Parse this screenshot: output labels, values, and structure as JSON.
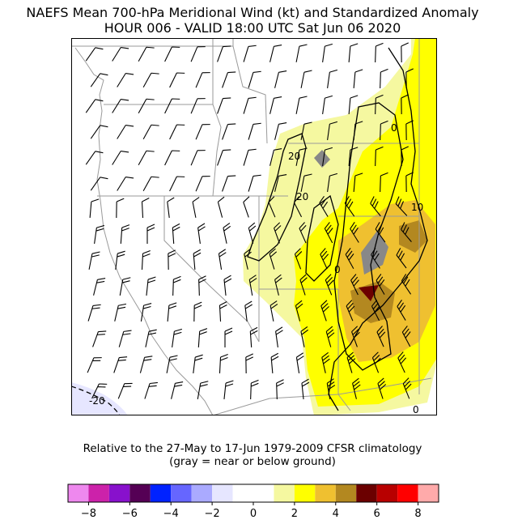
{
  "title": {
    "line1": "NAEFS Mean 700-hPa Meridional Wind (kt) and Standardized Anomaly",
    "line2": "HOUR 006 - VALID 18:00 UTC Sat Jun 06 2020"
  },
  "caption": {
    "line1": "Relative to the 27-May to 17-Jun 1979-2009 CFSR climatology",
    "line2": "(gray = near or below ground)"
  },
  "map": {
    "contour_labels": [
      "20",
      "-20",
      "0",
      "0",
      "0",
      "10",
      "20"
    ]
  },
  "colorbar": {
    "colors": [
      "#ee88ee",
      "#cc22aa",
      "#8811cc",
      "#550055",
      "#0022ff",
      "#6666ff",
      "#aaaaff",
      "#e6e6ff",
      "#ffffff",
      "#ffffff",
      "#f5f8a0",
      "#ffff00",
      "#efc030",
      "#b38820",
      "#6b0000",
      "#b80000",
      "#ff0000",
      "#ffaaaa"
    ],
    "tick_values": [
      -8,
      -6,
      -4,
      -2,
      0,
      2,
      4,
      6,
      8
    ],
    "tick_labels": [
      "−8",
      "−6",
      "−4",
      "−2",
      "0",
      "2",
      "4",
      "6",
      "8"
    ],
    "range": [
      -9,
      9
    ]
  }
}
